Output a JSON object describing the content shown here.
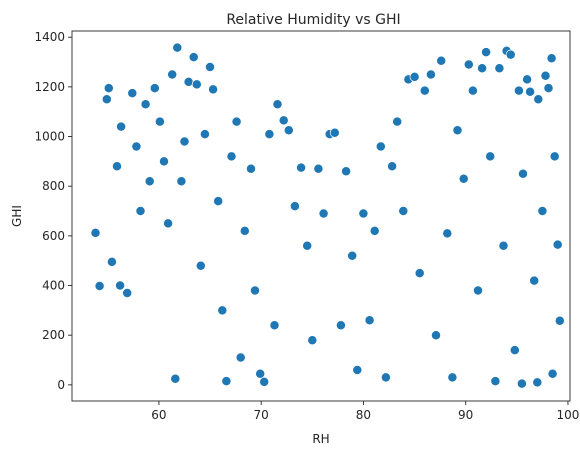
{
  "chart_data": {
    "type": "scatter",
    "title": "Relative Humidity vs GHI",
    "xlabel": "RH",
    "ylabel": "GHI",
    "xlim": [
      51.5,
      100.2
    ],
    "ylim": [
      -65,
      1425
    ],
    "xticks": [
      60,
      70,
      80,
      90,
      100
    ],
    "yticks": [
      0,
      200,
      400,
      600,
      800,
      1000,
      1200,
      1400
    ],
    "grid": false,
    "color": "#1f77b4",
    "edge_color": "#ffffff",
    "distribution_note": "dense cloud of several thousand points; sample of representative points below",
    "points": [
      [
        53.8,
        612
      ],
      [
        54.2,
        398
      ],
      [
        54.9,
        1150
      ],
      [
        55.1,
        1195
      ],
      [
        55.4,
        495
      ],
      [
        55.9,
        880
      ],
      [
        56.3,
        1040
      ],
      [
        56.2,
        400
      ],
      [
        56.9,
        370
      ],
      [
        57.4,
        1175
      ],
      [
        57.8,
        960
      ],
      [
        58.2,
        700
      ],
      [
        58.7,
        1130
      ],
      [
        59.1,
        820
      ],
      [
        59.6,
        1195
      ],
      [
        60.1,
        1060
      ],
      [
        60.5,
        900
      ],
      [
        60.9,
        650
      ],
      [
        61.3,
        1250
      ],
      [
        61.8,
        1358
      ],
      [
        61.6,
        25
      ],
      [
        62.2,
        820
      ],
      [
        62.5,
        980
      ],
      [
        62.9,
        1220
      ],
      [
        63.4,
        1320
      ],
      [
        63.7,
        1210
      ],
      [
        64.1,
        480
      ],
      [
        64.5,
        1010
      ],
      [
        65.0,
        1280
      ],
      [
        65.3,
        1190
      ],
      [
        65.8,
        740
      ],
      [
        66.2,
        300
      ],
      [
        66.6,
        15
      ],
      [
        67.1,
        920
      ],
      [
        67.6,
        1060
      ],
      [
        68.0,
        110
      ],
      [
        68.4,
        620
      ],
      [
        69.0,
        870
      ],
      [
        69.4,
        380
      ],
      [
        69.9,
        45
      ],
      [
        70.3,
        12
      ],
      [
        70.8,
        1010
      ],
      [
        71.3,
        240
      ],
      [
        71.6,
        1130
      ],
      [
        72.2,
        1065
      ],
      [
        72.7,
        1025
      ],
      [
        73.3,
        720
      ],
      [
        73.9,
        875
      ],
      [
        74.5,
        560
      ],
      [
        75.0,
        180
      ],
      [
        75.6,
        870
      ],
      [
        76.1,
        690
      ],
      [
        76.7,
        1010
      ],
      [
        77.2,
        1015
      ],
      [
        77.8,
        240
      ],
      [
        78.3,
        860
      ],
      [
        78.9,
        520
      ],
      [
        79.4,
        60
      ],
      [
        80.0,
        690
      ],
      [
        80.6,
        260
      ],
      [
        81.1,
        620
      ],
      [
        81.7,
        960
      ],
      [
        82.2,
        30
      ],
      [
        82.8,
        880
      ],
      [
        83.3,
        1060
      ],
      [
        83.9,
        700
      ],
      [
        84.4,
        1230
      ],
      [
        85.0,
        1240
      ],
      [
        85.5,
        450
      ],
      [
        86.0,
        1185
      ],
      [
        86.6,
        1250
      ],
      [
        87.1,
        200
      ],
      [
        87.6,
        1305
      ],
      [
        88.2,
        610
      ],
      [
        88.7,
        30
      ],
      [
        89.2,
        1025
      ],
      [
        89.8,
        830
      ],
      [
        90.3,
        1290
      ],
      [
        90.7,
        1185
      ],
      [
        91.2,
        380
      ],
      [
        91.6,
        1275
      ],
      [
        92.0,
        1340
      ],
      [
        92.4,
        920
      ],
      [
        92.9,
        15
      ],
      [
        93.3,
        1275
      ],
      [
        93.7,
        560
      ],
      [
        94.0,
        1345
      ],
      [
        94.4,
        1330
      ],
      [
        94.8,
        140
      ],
      [
        95.2,
        1185
      ],
      [
        95.6,
        850
      ],
      [
        96.0,
        1230
      ],
      [
        96.3,
        1180
      ],
      [
        96.7,
        420
      ],
      [
        97.1,
        1150
      ],
      [
        97.5,
        700
      ],
      [
        97.8,
        1245
      ],
      [
        98.1,
        1195
      ],
      [
        98.4,
        1315
      ],
      [
        98.7,
        920
      ],
      [
        99.0,
        565
      ],
      [
        99.2,
        258
      ],
      [
        98.5,
        45
      ],
      [
        97.0,
        10
      ],
      [
        95.5,
        5
      ]
    ]
  }
}
